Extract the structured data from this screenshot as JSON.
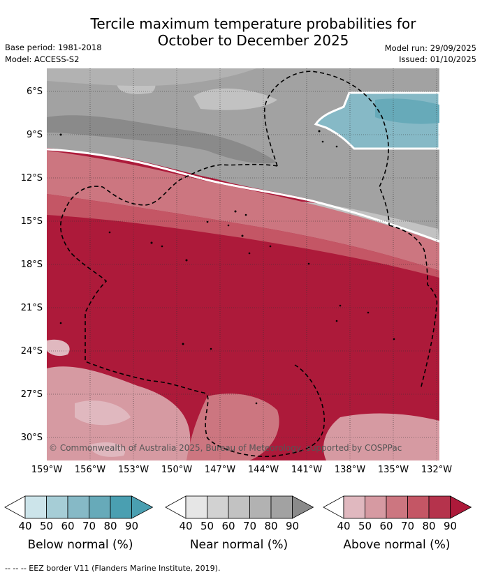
{
  "title_line1": "Tercile maximum temperature probabilities for",
  "title_line2": "October to December 2025",
  "base_period": "Base period: 1981-2018",
  "model": "Model: ACCESS-S2",
  "model_run": "Model run: 29/09/2025",
  "issued": "Issued: 01/10/2025",
  "copyright": "© Commonwealth of Australia 2025, Bureau of Meteorology, supported by COSPPac",
  "lat_labels": [
    "6°S",
    "9°S",
    "12°S",
    "15°S",
    "18°S",
    "21°S",
    "24°S",
    "27°S",
    "30°S"
  ],
  "lon_labels": [
    "159°W",
    "156°W",
    "153°W",
    "150°W",
    "147°W",
    "144°W",
    "141°W",
    "138°W",
    "135°W",
    "132°W"
  ],
  "legend": {
    "ticks": [
      "40",
      "50",
      "60",
      "70",
      "80",
      "90"
    ],
    "below": {
      "title": "Below normal (%)",
      "colors": [
        "#ffffff",
        "#cce4ea",
        "#a6cdd6",
        "#86b9c6",
        "#67aab9",
        "#4a9fb1"
      ]
    },
    "near": {
      "title": "Near normal (%)",
      "colors": [
        "#ffffff",
        "#e6e6e6",
        "#d2d2d2",
        "#c2c2c2",
        "#b2b2b2",
        "#a2a2a2",
        "#8a8a8a"
      ]
    },
    "above": {
      "title": "Above normal (%)",
      "colors": [
        "#ffffff",
        "#e0b8bf",
        "#d69aa2",
        "#cc7680",
        "#c45665",
        "#b5334c",
        "#ad1a3a"
      ]
    }
  },
  "footnote": "--  --  -- EEZ border V11 (Flanders Marine Institute, 2019)."
}
